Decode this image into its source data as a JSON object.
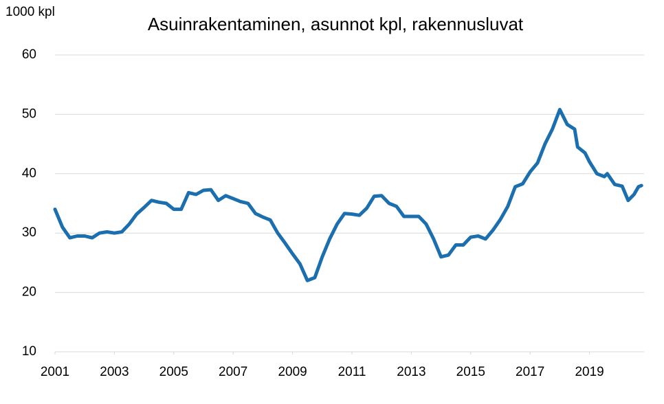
{
  "chart_data": {
    "type": "line",
    "title": "Asuinrakentaminen, asunnot kpl, rakennusluvat",
    "y_label": "1000 kpl",
    "x": [
      2001.0,
      2001.25,
      2001.5,
      2001.75,
      2002.0,
      2002.25,
      2002.5,
      2002.75,
      2003.0,
      2003.25,
      2003.5,
      2003.75,
      2004.0,
      2004.25,
      2004.5,
      2004.75,
      2005.0,
      2005.25,
      2005.5,
      2005.75,
      2006.0,
      2006.25,
      2006.5,
      2006.75,
      2007.0,
      2007.25,
      2007.5,
      2007.75,
      2008.0,
      2008.25,
      2008.5,
      2008.75,
      2009.0,
      2009.25,
      2009.5,
      2009.75,
      2010.0,
      2010.25,
      2010.5,
      2010.75,
      2011.0,
      2011.25,
      2011.5,
      2011.75,
      2012.0,
      2012.25,
      2012.5,
      2012.75,
      2013.0,
      2013.25,
      2013.5,
      2013.75,
      2014.0,
      2014.25,
      2014.5,
      2014.75,
      2015.0,
      2015.25,
      2015.5,
      2015.75,
      2016.0,
      2016.25,
      2016.5,
      2016.75,
      2017.0,
      2017.25,
      2017.5,
      2017.75,
      2018.0,
      2018.25,
      2018.5,
      2018.6,
      2018.85,
      2019.0,
      2019.25,
      2019.5,
      2019.6,
      2019.85,
      2020.1,
      2020.3,
      2020.5,
      2020.65,
      2020.75
    ],
    "series": [
      {
        "name": "Rakennusluvat",
        "color": "#1b6fae",
        "values": [
          34,
          31,
          29.2,
          29.5,
          29.5,
          29.2,
          30,
          30.2,
          30,
          30.2,
          31.5,
          33.2,
          34.3,
          35.5,
          35.2,
          35,
          34,
          34,
          36.8,
          36.5,
          37.2,
          37.3,
          35.5,
          36.3,
          35.8,
          35.3,
          35,
          33.3,
          32.7,
          32.2,
          30,
          28.3,
          26.5,
          24.8,
          22,
          22.5,
          26,
          29,
          31.5,
          33.3,
          33.2,
          33,
          34.2,
          36.2,
          36.3,
          35,
          34.5,
          32.8,
          32.8,
          32.8,
          31.5,
          29,
          26,
          26.3,
          28,
          28,
          29.3,
          29.5,
          29,
          30.5,
          32.3,
          34.5,
          37.8,
          38.3,
          40.3,
          41.8,
          45,
          47.5,
          50.8,
          48.3,
          47.5,
          44.5,
          43.5,
          42,
          40,
          39.5,
          40,
          38.2,
          37.9,
          35.5,
          36.5,
          37.8,
          38
        ]
      }
    ],
    "xlim": [
      2001,
      2020.9
    ],
    "xticks": [
      2001,
      2003,
      2005,
      2007,
      2009,
      2011,
      2013,
      2015,
      2017,
      2019
    ],
    "ylim": [
      10,
      60
    ],
    "yticks": [
      10,
      20,
      30,
      40,
      50,
      60
    ],
    "grid": true
  }
}
